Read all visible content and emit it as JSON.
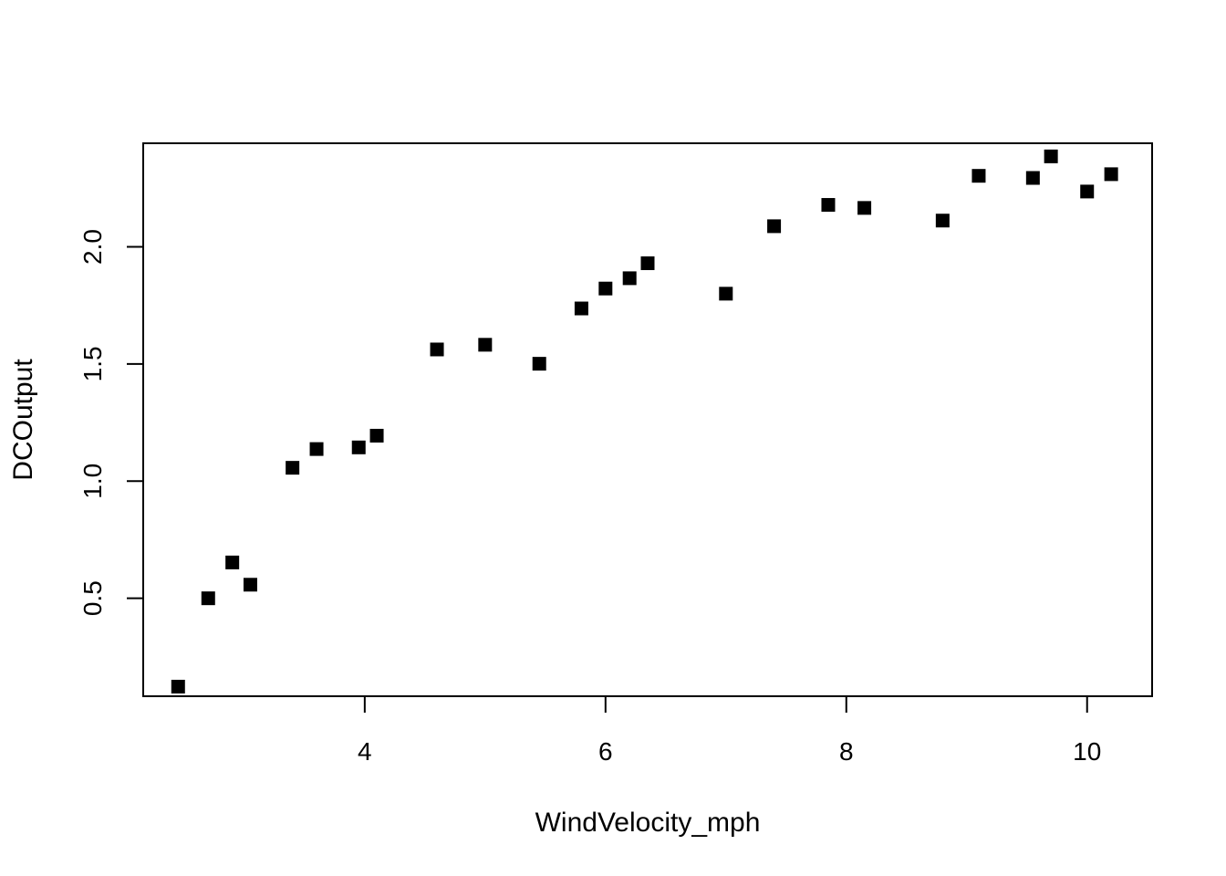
{
  "chart_data": {
    "type": "scatter",
    "title": "",
    "xlabel": "WindVelocity_mph",
    "ylabel": "DCOutput",
    "xlim": [
      2.16,
      10.54
    ],
    "ylim": [
      0.082,
      2.442
    ],
    "xticks": [
      "4",
      "6",
      "8",
      "10"
    ],
    "yticks": [
      "0.5",
      "1.0",
      "1.5",
      "2.0"
    ],
    "grid": false,
    "marker": "filled-square",
    "marker_color": "#000000",
    "points": [
      {
        "x": 2.45,
        "y": 0.123
      },
      {
        "x": 2.7,
        "y": 0.5
      },
      {
        "x": 2.9,
        "y": 0.653
      },
      {
        "x": 3.05,
        "y": 0.558
      },
      {
        "x": 3.4,
        "y": 1.057
      },
      {
        "x": 3.6,
        "y": 1.137
      },
      {
        "x": 3.95,
        "y": 1.144
      },
      {
        "x": 4.1,
        "y": 1.194
      },
      {
        "x": 4.6,
        "y": 1.562
      },
      {
        "x": 5.0,
        "y": 1.582
      },
      {
        "x": 5.45,
        "y": 1.501
      },
      {
        "x": 5.8,
        "y": 1.737
      },
      {
        "x": 6.0,
        "y": 1.822
      },
      {
        "x": 6.2,
        "y": 1.866
      },
      {
        "x": 6.35,
        "y": 1.93
      },
      {
        "x": 7.0,
        "y": 1.8
      },
      {
        "x": 7.4,
        "y": 2.088
      },
      {
        "x": 7.85,
        "y": 2.179
      },
      {
        "x": 8.15,
        "y": 2.166
      },
      {
        "x": 8.8,
        "y": 2.112
      },
      {
        "x": 9.1,
        "y": 2.303
      },
      {
        "x": 9.55,
        "y": 2.294
      },
      {
        "x": 9.7,
        "y": 2.386
      },
      {
        "x": 10.0,
        "y": 2.236
      },
      {
        "x": 10.2,
        "y": 2.31
      }
    ]
  }
}
